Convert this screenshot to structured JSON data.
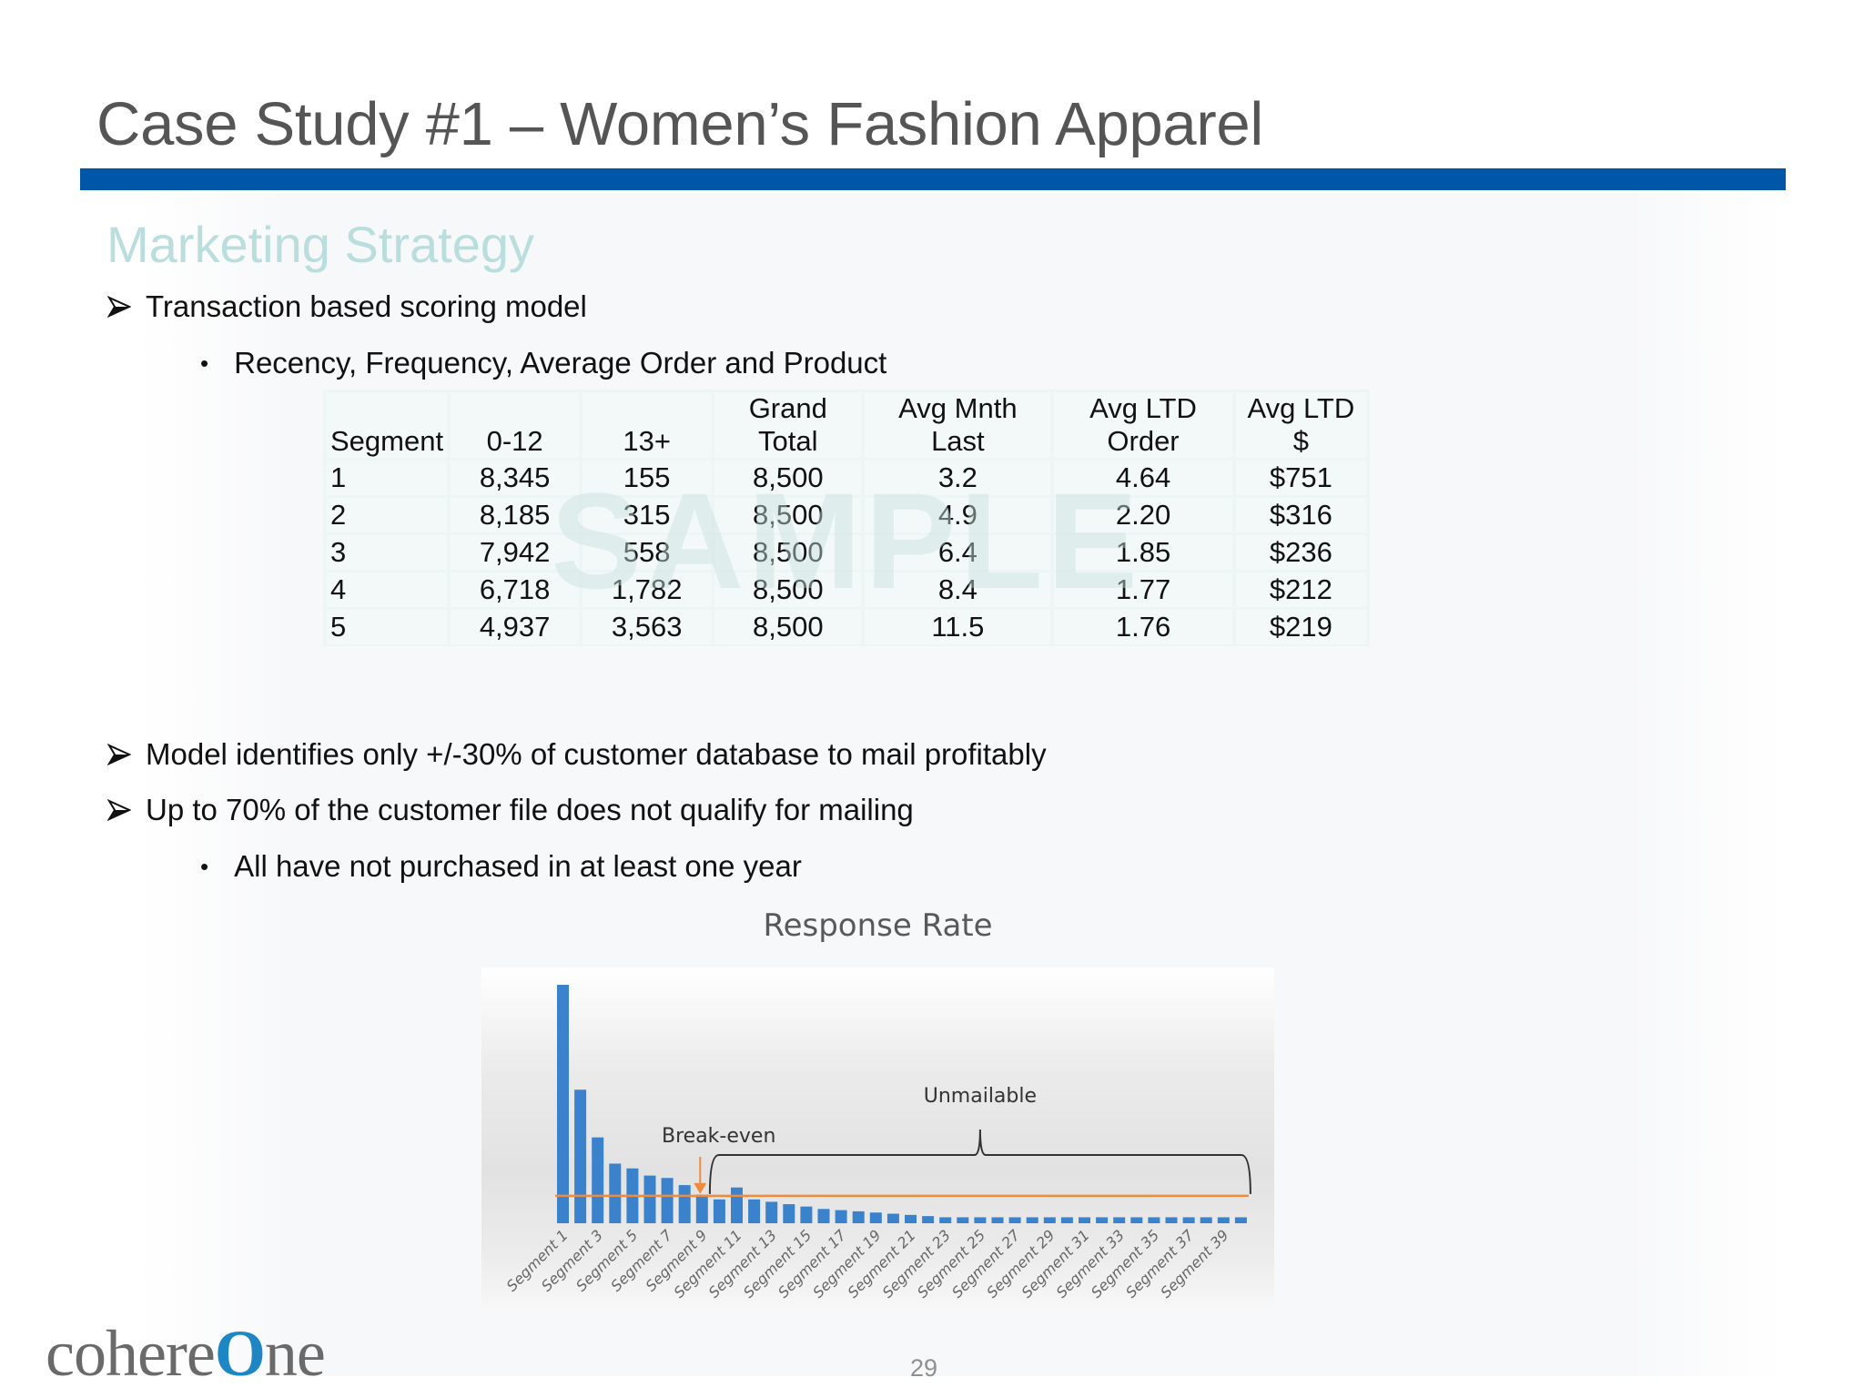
{
  "slide": {
    "title": "Case Study #1 – Women’s Fashion Apparel",
    "subtitle": "Marketing Strategy",
    "page_number": "29",
    "accent_color": "#0057a8",
    "subtitle_color": "#b9dedd"
  },
  "bullets_top": [
    {
      "level": 1,
      "icon": "arrow-bullet-icon",
      "text": "Transaction based scoring model"
    },
    {
      "level": 2,
      "icon": "dot-bullet-icon",
      "text": "Recency, Frequency, Average Order and Product"
    }
  ],
  "table": {
    "headers": [
      {
        "line1": "",
        "line2": "Segment"
      },
      {
        "line1": "",
        "line2": "0-12"
      },
      {
        "line1": "",
        "line2": "13+"
      },
      {
        "line1": "Grand",
        "line2": "Total"
      },
      {
        "line1": "Avg Mnth",
        "line2": "Last"
      },
      {
        "line1": "Avg LTD",
        "line2": "Order"
      },
      {
        "line1": "Avg LTD",
        "line2": "$"
      }
    ],
    "rows": [
      [
        "1",
        "8,345",
        "155",
        "8,500",
        "3.2",
        "4.64",
        "$751"
      ],
      [
        "2",
        "8,185",
        "315",
        "8,500",
        "4.9",
        "2.20",
        "$316"
      ],
      [
        "3",
        "7,942",
        "558",
        "8,500",
        "6.4",
        "1.85",
        "$236"
      ],
      [
        "4",
        "6,718",
        "1,782",
        "8,500",
        "8.4",
        "1.77",
        "$212"
      ],
      [
        "5",
        "4,937",
        "3,563",
        "8,500",
        "11.5",
        "1.76",
        "$219"
      ]
    ],
    "watermark": "SAMPLE"
  },
  "bullets_bottom": [
    {
      "level": 1,
      "icon": "arrow-bullet-icon",
      "text": "Model identifies only +/-30% of customer database to mail profitably"
    },
    {
      "level": 1,
      "icon": "arrow-bullet-icon",
      "text": "Up to 70% of the customer file does not qualify for mailing"
    },
    {
      "level": 2,
      "icon": "dot-bullet-icon",
      "text": "All have not purchased in at least one year"
    }
  ],
  "chart_data": {
    "type": "bar",
    "title": "Response Rate",
    "xlabel": "",
    "ylabel": "",
    "grid": false,
    "legend": "none",
    "bar_color": "#3a82cc",
    "breakeven_color": "#f08a3c",
    "categories": [
      "Segment 1",
      "Segment 2",
      "Segment 3",
      "Segment 4",
      "Segment 5",
      "Segment 6",
      "Segment 7",
      "Segment 8",
      "Segment 9",
      "Segment 10",
      "Segment 11",
      "Segment 12",
      "Segment 13",
      "Segment 14",
      "Segment 15",
      "Segment 16",
      "Segment 17",
      "Segment 18",
      "Segment 19",
      "Segment 20",
      "Segment 21",
      "Segment 22",
      "Segment 23",
      "Segment 24",
      "Segment 25",
      "Segment 26",
      "Segment 27",
      "Segment 28",
      "Segment 29",
      "Segment 30",
      "Segment 31",
      "Segment 32",
      "Segment 33",
      "Segment 34",
      "Segment 35",
      "Segment 36",
      "Segment 37",
      "Segment 38",
      "Segment 39",
      "Segment 40"
    ],
    "visible_tick_labels": [
      "Segment 1",
      "Segment 3",
      "Segment 5",
      "Segment 7",
      "Segment 9",
      "Segment 11",
      "Segment 13",
      "Segment 15",
      "Segment 17",
      "Segment 19",
      "Segment 21",
      "Segment 23",
      "Segment 25",
      "Segment 27",
      "Segment 29",
      "Segment 31",
      "Segment 33",
      "Segment 35",
      "Segment 37",
      "Segment 39"
    ],
    "values": [
      100,
      56,
      36,
      25,
      23,
      20,
      19,
      16,
      12,
      10,
      15,
      10,
      9,
      8,
      7,
      6,
      5.5,
      5,
      4.5,
      4,
      3.5,
      3,
      2.5,
      2.5,
      2.5,
      2.5,
      2.5,
      2.5,
      2.5,
      2.5,
      2.5,
      2.5,
      2.5,
      2.5,
      2.5,
      2.5,
      2.5,
      2.5,
      2.5,
      2.5
    ],
    "ylim": [
      0,
      100
    ],
    "breakeven_value": 11.5,
    "annotations": [
      {
        "text": "Break-even",
        "type": "arrow",
        "target": "Segment 9"
      },
      {
        "text": "Unmailable",
        "type": "brace",
        "from": "Segment 10",
        "to": "Segment 40"
      }
    ]
  }
}
